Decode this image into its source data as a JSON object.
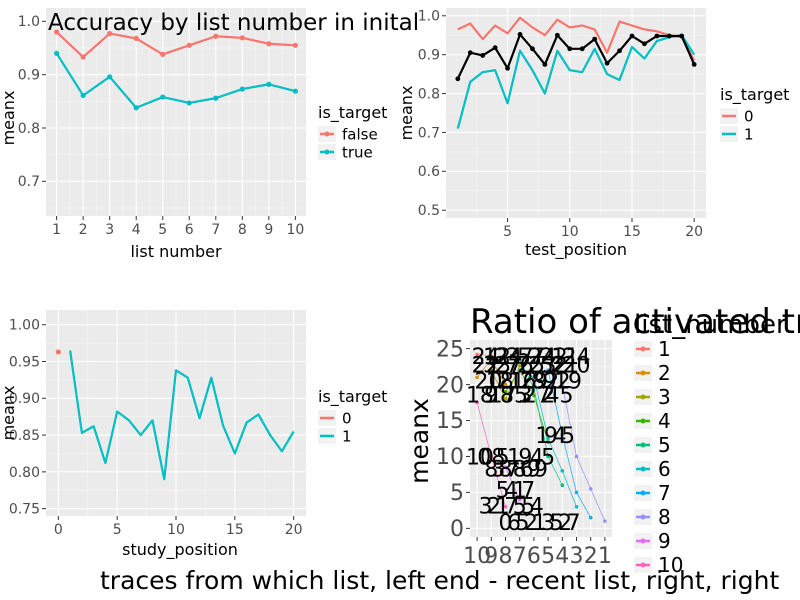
{
  "chart_data": [
    {
      "id": "p1",
      "type": "line",
      "title": "Accuracy by list number in inital",
      "xlabel": "list number",
      "ylabel": "meanx",
      "xlim": [
        0.6,
        10.4
      ],
      "ylim": [
        0.635,
        1.025
      ],
      "xticks": [
        1,
        2,
        3,
        4,
        5,
        6,
        7,
        8,
        9,
        10
      ],
      "xtick_labels": [
        "1",
        "2",
        "3",
        "4",
        "5",
        "6",
        "7",
        "8",
        "9",
        "10"
      ],
      "yticks": [
        0.7,
        0.8,
        0.9,
        1.0
      ],
      "ytick_labels": [
        "0.7",
        "0.8",
        "0.9",
        "1.0"
      ],
      "grid": true,
      "legend": {
        "title": "is_target",
        "position": "right",
        "entries": [
          "false",
          "true"
        ]
      },
      "series": [
        {
          "name": "false",
          "color": "#F8766D",
          "show_points": true,
          "x": [
            1,
            2,
            3,
            4,
            5,
            6,
            7,
            8,
            9,
            10
          ],
          "y": [
            0.98,
            0.933,
            0.977,
            0.968,
            0.938,
            0.955,
            0.972,
            0.969,
            0.958,
            0.955
          ]
        },
        {
          "name": "true",
          "color": "#00BFC4",
          "show_points": true,
          "x": [
            1,
            2,
            3,
            4,
            5,
            6,
            7,
            8,
            9,
            10
          ],
          "y": [
            0.94,
            0.861,
            0.896,
            0.838,
            0.858,
            0.847,
            0.856,
            0.873,
            0.882,
            0.869
          ]
        }
      ]
    },
    {
      "id": "p2",
      "type": "line",
      "title": "",
      "xlabel": "test_position",
      "ylabel": "meanx",
      "xlim": [
        0.05,
        20.95
      ],
      "ylim": [
        0.48,
        1.02
      ],
      "xticks": [
        5,
        10,
        15,
        20
      ],
      "xtick_labels": [
        "5",
        "10",
        "15",
        "20"
      ],
      "yticks": [
        0.5,
        0.6,
        0.7,
        0.8,
        0.9,
        1.0
      ],
      "ytick_labels": [
        "0.5",
        "0.6",
        "0.7",
        "0.8",
        "0.9",
        "1.0"
      ],
      "grid": true,
      "legend": {
        "title": "is_target",
        "position": "right",
        "entries": [
          "0",
          "1"
        ]
      },
      "series": [
        {
          "name": "0",
          "color": "#F8766D",
          "show_points": false,
          "x": [
            1,
            2,
            3,
            4,
            5,
            6,
            7,
            8,
            9,
            10,
            11,
            12,
            13,
            14,
            15,
            16,
            17,
            18,
            19,
            20
          ],
          "y": [
            0.965,
            0.98,
            0.94,
            0.975,
            0.955,
            0.995,
            0.97,
            0.95,
            0.99,
            0.97,
            0.975,
            0.965,
            0.905,
            0.985,
            0.975,
            0.965,
            0.96,
            0.95,
            0.945,
            0.885
          ]
        },
        {
          "name": "1",
          "color": "#00BFC4",
          "show_points": false,
          "x": [
            1,
            2,
            3,
            4,
            5,
            6,
            7,
            8,
            9,
            10,
            11,
            12,
            13,
            14,
            15,
            16,
            17,
            18,
            19,
            20
          ],
          "y": [
            0.71,
            0.83,
            0.855,
            0.86,
            0.775,
            0.91,
            0.86,
            0.8,
            0.91,
            0.86,
            0.855,
            0.915,
            0.85,
            0.835,
            0.92,
            0.89,
            0.935,
            0.945,
            0.95,
            0.9
          ]
        },
        {
          "name": "",
          "color": "#000000",
          "show_points": true,
          "point_color": "#000000",
          "x": [
            1,
            2,
            3,
            4,
            5,
            6,
            7,
            8,
            9,
            10,
            11,
            12,
            13,
            14,
            15,
            16,
            17,
            18,
            19,
            20
          ],
          "y": [
            0.838,
            0.905,
            0.898,
            0.918,
            0.865,
            0.952,
            0.915,
            0.875,
            0.95,
            0.915,
            0.915,
            0.94,
            0.878,
            0.91,
            0.948,
            0.928,
            0.948,
            0.948,
            0.948,
            0.875
          ]
        }
      ]
    },
    {
      "id": "p3",
      "type": "line",
      "title": "",
      "xlabel": "study_position",
      "ylabel": "meanx",
      "xlim": [
        -1.05,
        21.05
      ],
      "ylim": [
        0.74,
        1.02
      ],
      "xticks": [
        0,
        5,
        10,
        15,
        20
      ],
      "xtick_labels": [
        "0",
        "5",
        "10",
        "15",
        "20"
      ],
      "yticks": [
        0.75,
        0.8,
        0.85,
        0.9,
        0.95,
        1.0
      ],
      "ytick_labels": [
        "0.75",
        "0.80",
        "0.85",
        "0.90",
        "0.95",
        "1.00"
      ],
      "grid": true,
      "legend": {
        "title": "is_target",
        "position": "right",
        "entries": [
          "0",
          "1"
        ]
      },
      "series": [
        {
          "name": "0",
          "color": "#F8766D",
          "show_points": true,
          "x": [
            0
          ],
          "y": [
            0.963
          ]
        },
        {
          "name": "1",
          "color": "#00BFC4",
          "show_points": false,
          "x": [
            1,
            2,
            3,
            4,
            5,
            6,
            7,
            8,
            9,
            10,
            11,
            12,
            13,
            14,
            15,
            16,
            17,
            18,
            19,
            20
          ],
          "y": [
            0.965,
            0.853,
            0.862,
            0.812,
            0.882,
            0.87,
            0.85,
            0.87,
            0.79,
            0.938,
            0.928,
            0.873,
            0.928,
            0.863,
            0.825,
            0.867,
            0.878,
            0.85,
            0.828,
            0.855
          ]
        }
      ]
    },
    {
      "id": "p4",
      "type": "line",
      "title": "Ratio of activated traces",
      "xlabel": "traces from which list, left end - recent list, right, right",
      "ylabel": "meanx",
      "xlim": [
        0.5,
        10.5
      ],
      "ylim": [
        -1.2,
        26.2
      ],
      "xticks": [
        1,
        2,
        3,
        4,
        5,
        6,
        7,
        8,
        9,
        10
      ],
      "xtick_labels": [
        "10",
        "9",
        "8",
        "7",
        "6",
        "5",
        "4",
        "3",
        "2",
        "1"
      ],
      "yticks": [
        0,
        5,
        10,
        15,
        20,
        25
      ],
      "ytick_labels": [
        "0",
        "5",
        "10",
        "15",
        "20",
        "25"
      ],
      "grid": true,
      "legend": {
        "title": "list_number",
        "position": "right",
        "entries": [
          "1",
          "2",
          "3",
          "4",
          "5",
          "6",
          "7",
          "8",
          "9",
          "10"
        ],
        "colors": [
          "#F8766D",
          "#D89000",
          "#A3A500",
          "#39B600",
          "#00BF7D",
          "#00BFC4",
          "#00B0F6",
          "#9590FF",
          "#E76BF3",
          "#FF62BC"
        ]
      },
      "label_groups": [
        {
          "y": 24.0,
          "labels": [
            "24",
            "12",
            "24",
            "37",
            "57",
            "24",
            "22",
            "11",
            "24"
          ],
          "x": [
            1.6,
            2.4,
            3.2,
            4.0,
            4.8,
            5.6,
            6.4,
            7.2,
            8.0
          ]
        },
        {
          "y": 22.8,
          "labels": [
            "22",
            "33",
            "27",
            "76",
            "25",
            "23",
            "52",
            "21",
            "20"
          ],
          "x": [
            1.6,
            2.4,
            3.2,
            4.0,
            4.8,
            5.6,
            6.4,
            7.2,
            8.0
          ]
        },
        {
          "y": 20.6,
          "labels": [
            "20",
            "18",
            "21",
            "16",
            "29",
            "82",
            "92",
            "19"
          ],
          "x": [
            1.8,
            2.6,
            3.4,
            4.2,
            5.0,
            5.8,
            6.6,
            7.4
          ]
        },
        {
          "y": 18.6,
          "labels": [
            "18",
            "9",
            "17",
            "85",
            "3",
            "27",
            "2",
            "45"
          ],
          "x": [
            1.2,
            2.0,
            2.8,
            3.6,
            4.4,
            5.2,
            6.0,
            6.8
          ]
        },
        {
          "y": 10.0,
          "labels": [
            "10",
            "08",
            "5",
            "1",
            "9",
            "4",
            "5"
          ],
          "x": [
            1.2,
            2.0,
            2.8,
            3.6,
            4.4,
            5.2,
            6.0
          ]
        },
        {
          "y": 13.0,
          "labels": [
            "1",
            "9",
            "4",
            "5"
          ],
          "x": [
            5.6,
            6.2,
            6.8,
            7.4
          ]
        },
        {
          "y": 8.3,
          "labels": [
            "8",
            "3",
            "8",
            "7",
            "8",
            "6",
            "9",
            "9"
          ],
          "x": [
            2.0,
            2.5,
            3.0,
            3.5,
            4.0,
            4.5,
            5.0,
            5.5
          ]
        },
        {
          "y": 5.4,
          "labels": [
            "5",
            "4",
            "1",
            "7"
          ],
          "x": [
            2.8,
            3.4,
            4.0,
            4.6
          ]
        },
        {
          "y": 3.2,
          "labels": [
            "3",
            "2",
            "1",
            "7",
            "5",
            "5",
            "4"
          ],
          "x": [
            1.6,
            2.2,
            2.8,
            3.4,
            4.0,
            4.6,
            5.2
          ]
        },
        {
          "y": 0.9,
          "labels": [
            "0",
            "6",
            "5",
            "2",
            "1",
            "3",
            "5",
            "2",
            "7"
          ],
          "x": [
            3.0,
            3.6,
            4.2,
            4.8,
            5.4,
            6.0,
            6.6,
            7.2,
            7.8
          ]
        }
      ],
      "series": [
        {
          "name": "1",
          "color": "#F8766D",
          "show_points": true,
          "x": [
            1,
            2
          ],
          "y": [
            24.2,
            24.0
          ]
        },
        {
          "name": "2",
          "color": "#D89000",
          "show_points": true,
          "x": [
            1,
            2,
            3
          ],
          "y": [
            21.0,
            23.5,
            20.0
          ]
        },
        {
          "name": "3",
          "color": "#A3A500",
          "show_points": true,
          "x": [
            2,
            3,
            4
          ],
          "y": [
            22.0,
            18.0,
            22.6
          ]
        },
        {
          "name": "4",
          "color": "#39B600",
          "show_points": true,
          "x": [
            3,
            4,
            5,
            6
          ],
          "y": [
            19.0,
            22.0,
            18.5,
            12.0
          ]
        },
        {
          "name": "5",
          "color": "#00BF7D",
          "show_points": true,
          "x": [
            4,
            5,
            6,
            7
          ],
          "y": [
            23.5,
            19.5,
            10.0,
            6.0
          ]
        },
        {
          "name": "6",
          "color": "#00BFC4",
          "show_points": true,
          "x": [
            5,
            6,
            7,
            8
          ],
          "y": [
            21.0,
            12.5,
            8.0,
            3.0
          ]
        },
        {
          "name": "7",
          "color": "#00B0F6",
          "show_points": true,
          "x": [
            6,
            7,
            8,
            9
          ],
          "y": [
            22.0,
            13.0,
            5.0,
            1.5
          ]
        },
        {
          "name": "8",
          "color": "#9590FF",
          "show_points": true,
          "x": [
            7,
            8,
            9,
            10
          ],
          "y": [
            20.0,
            10.0,
            5.5,
            1.0
          ]
        },
        {
          "name": "9",
          "color": "#E76BF3",
          "show_points": true,
          "x": [
            2,
            3,
            4
          ],
          "y": [
            10.0,
            8.5,
            4.0
          ]
        },
        {
          "name": "10",
          "color": "#FF62BC",
          "show_points": true,
          "x": [
            1,
            2,
            3
          ],
          "y": [
            17.5,
            10.0,
            3.0
          ]
        }
      ]
    }
  ]
}
